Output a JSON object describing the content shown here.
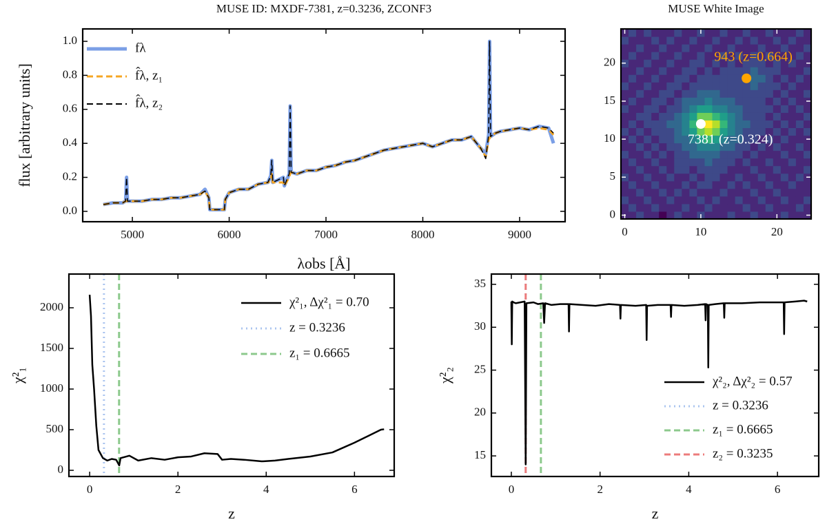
{
  "chart_data": [
    {
      "type": "line",
      "title": "MUSE ID: MXDF-7381, z=0.3236, ZCONF3",
      "x_label": "λobs [Å]",
      "y_label": "flux [arbitrary units]",
      "xlim": [
        4487,
        9470
      ],
      "ylim": [
        -0.061,
        1.073
      ],
      "xticks": [
        5000,
        6000,
        7000,
        8000,
        9000
      ],
      "yticks": [
        {
          "value": 0,
          "label": "0.0"
        },
        {
          "value": 0.2,
          "label": "0.2"
        },
        {
          "value": 0.4,
          "label": "0.4"
        },
        {
          "value": 0.6,
          "label": "0.6"
        },
        {
          "value": 0.8,
          "label": "0.8"
        },
        {
          "value": 1,
          "label": "1.0"
        }
      ],
      "legend": "upper left",
      "x": [
        4700,
        4800,
        4900,
        4930,
        4940,
        4950,
        5000,
        5100,
        5200,
        5300,
        5400,
        5500,
        5600,
        5700,
        5750,
        5790,
        5800,
        5950,
        5960,
        6000,
        6100,
        6200,
        6300,
        6400,
        6430,
        6440,
        6450,
        6560,
        6570,
        6620,
        6630,
        6640,
        6700,
        6800,
        6900,
        7000,
        7100,
        7200,
        7300,
        7400,
        7500,
        7600,
        7700,
        7800,
        7900,
        8000,
        8100,
        8200,
        8300,
        8400,
        8500,
        8600,
        8650,
        8680,
        8690,
        8700,
        8750,
        8800,
        8900,
        9000,
        9100,
        9200,
        9300,
        9350
      ],
      "series": [
        {
          "name": "fλ",
          "color": "#7b9fe6",
          "dash": "solid",
          "width": 5,
          "values": [
            0.04,
            0.05,
            0.05,
            0.06,
            0.2,
            0.06,
            0.06,
            0.06,
            0.07,
            0.07,
            0.08,
            0.08,
            0.09,
            0.1,
            0.13,
            0.08,
            0.01,
            0.01,
            0.07,
            0.11,
            0.13,
            0.13,
            0.16,
            0.17,
            0.21,
            0.3,
            0.17,
            0.2,
            0.15,
            0.22,
            0.62,
            0.23,
            0.22,
            0.24,
            0.24,
            0.26,
            0.27,
            0.29,
            0.3,
            0.32,
            0.34,
            0.36,
            0.37,
            0.38,
            0.39,
            0.4,
            0.38,
            0.4,
            0.42,
            0.42,
            0.44,
            0.37,
            0.34,
            0.45,
            1.0,
            0.44,
            0.46,
            0.47,
            0.48,
            0.49,
            0.48,
            0.5,
            0.49,
            0.4
          ]
        },
        {
          "name": "f̂λ, z₁",
          "color": "#f5a623",
          "dash": "dash",
          "width": 3,
          "values": [
            0.04,
            0.05,
            0.05,
            0.06,
            0.06,
            0.06,
            0.06,
            0.06,
            0.07,
            0.07,
            0.08,
            0.08,
            0.09,
            0.1,
            0.12,
            0.08,
            0.01,
            0.01,
            0.07,
            0.11,
            0.13,
            0.13,
            0.16,
            0.17,
            0.18,
            0.22,
            0.17,
            0.17,
            0.15,
            0.2,
            0.22,
            0.23,
            0.22,
            0.24,
            0.24,
            0.26,
            0.27,
            0.29,
            0.3,
            0.32,
            0.34,
            0.36,
            0.37,
            0.38,
            0.39,
            0.4,
            0.38,
            0.4,
            0.42,
            0.42,
            0.44,
            0.37,
            0.32,
            0.42,
            0.43,
            0.44,
            0.46,
            0.47,
            0.48,
            0.49,
            0.48,
            0.49,
            0.48,
            0.45
          ]
        },
        {
          "name": "f̂λ, z₂",
          "color": "#000000",
          "dash": "dash",
          "width": 1.5,
          "values": [
            0.04,
            0.05,
            0.05,
            0.06,
            0.2,
            0.06,
            0.06,
            0.06,
            0.07,
            0.07,
            0.08,
            0.08,
            0.09,
            0.1,
            0.12,
            0.08,
            0.01,
            0.01,
            0.07,
            0.11,
            0.13,
            0.13,
            0.16,
            0.17,
            0.21,
            0.3,
            0.17,
            0.2,
            0.15,
            0.22,
            0.62,
            0.23,
            0.22,
            0.24,
            0.24,
            0.26,
            0.27,
            0.29,
            0.3,
            0.32,
            0.34,
            0.36,
            0.37,
            0.38,
            0.39,
            0.4,
            0.38,
            0.4,
            0.42,
            0.42,
            0.44,
            0.37,
            0.31,
            0.45,
            1.0,
            0.44,
            0.46,
            0.47,
            0.48,
            0.49,
            0.48,
            0.5,
            0.49,
            0.46
          ]
        }
      ]
    },
    {
      "type": "heatmap",
      "title": "MUSE White Image",
      "colormap": "viridis",
      "xlim": [
        -0.5,
        24.5
      ],
      "ylim": [
        -0.5,
        24.5
      ],
      "xticks": [
        0,
        10,
        20
      ],
      "yticks": [
        0,
        5,
        10,
        15,
        20
      ],
      "image": [
        [
          2,
          2,
          3,
          2,
          2,
          1,
          2,
          3,
          2,
          2,
          3,
          2,
          2,
          2,
          3,
          2,
          2,
          3,
          2,
          2,
          2,
          3,
          2,
          2,
          2
        ],
        [
          2,
          3,
          2,
          2,
          3,
          2,
          2,
          2,
          3,
          2,
          2,
          3,
          2,
          2,
          2,
          2,
          3,
          2,
          2,
          3,
          2,
          2,
          2,
          3,
          2
        ],
        [
          3,
          2,
          2,
          3,
          2,
          2,
          3,
          2,
          2,
          2,
          3,
          2,
          3,
          2,
          2,
          3,
          2,
          2,
          3,
          2,
          2,
          3,
          2,
          2,
          3
        ],
        [
          2,
          2,
          3,
          2,
          2,
          3,
          2,
          3,
          2,
          3,
          2,
          2,
          2,
          3,
          2,
          2,
          2,
          3,
          2,
          2,
          3,
          2,
          2,
          2,
          2
        ],
        [
          2,
          3,
          2,
          2,
          3,
          2,
          2,
          2,
          3,
          2,
          3,
          3,
          2,
          2,
          3,
          2,
          3,
          2,
          2,
          3,
          2,
          2,
          3,
          2,
          2
        ],
        [
          3,
          2,
          2,
          3,
          2,
          2,
          3,
          2,
          2,
          3,
          2,
          3,
          3,
          2,
          2,
          3,
          2,
          2,
          3,
          2,
          2,
          3,
          2,
          3,
          2
        ],
        [
          2,
          2,
          3,
          2,
          2,
          3,
          2,
          3,
          3,
          2,
          3,
          3,
          3,
          3,
          2,
          2,
          2,
          3,
          2,
          2,
          3,
          2,
          2,
          2,
          3
        ],
        [
          2,
          3,
          2,
          2,
          3,
          2,
          2,
          3,
          3,
          3,
          3,
          4,
          3,
          3,
          3,
          2,
          3,
          2,
          2,
          3,
          2,
          2,
          3,
          2,
          2
        ],
        [
          3,
          2,
          2,
          3,
          2,
          3,
          2,
          3,
          3,
          4,
          4,
          4,
          4,
          3,
          3,
          3,
          2,
          3,
          2,
          2,
          2,
          3,
          2,
          2,
          3
        ],
        [
          2,
          2,
          3,
          2,
          3,
          2,
          3,
          3,
          4,
          4,
          5,
          5,
          5,
          4,
          4,
          3,
          3,
          2,
          3,
          2,
          3,
          2,
          2,
          3,
          2
        ],
        [
          2,
          3,
          2,
          3,
          2,
          3,
          3,
          4,
          4,
          5,
          6,
          7,
          6,
          5,
          4,
          4,
          3,
          3,
          2,
          3,
          2,
          3,
          2,
          2,
          2
        ],
        [
          3,
          2,
          3,
          2,
          3,
          3,
          3,
          4,
          5,
          6,
          8,
          9,
          8,
          6,
          5,
          4,
          3,
          3,
          3,
          2,
          3,
          2,
          3,
          2,
          3
        ],
        [
          2,
          3,
          2,
          3,
          3,
          3,
          4,
          4,
          5,
          7,
          9,
          10,
          9,
          7,
          5,
          4,
          4,
          3,
          3,
          3,
          2,
          3,
          2,
          3,
          2
        ],
        [
          2,
          2,
          3,
          3,
          2,
          3,
          3,
          4,
          5,
          6,
          8,
          8,
          7,
          6,
          5,
          4,
          3,
          3,
          3,
          2,
          3,
          2,
          2,
          2,
          3
        ],
        [
          3,
          2,
          2,
          3,
          3,
          2,
          3,
          3,
          4,
          5,
          6,
          6,
          5,
          5,
          4,
          4,
          3,
          3,
          3,
          3,
          2,
          3,
          2,
          3,
          2
        ],
        [
          2,
          3,
          2,
          2,
          3,
          3,
          2,
          3,
          4,
          4,
          4,
          5,
          4,
          4,
          4,
          3,
          3,
          3,
          3,
          2,
          3,
          2,
          3,
          2,
          2
        ],
        [
          2,
          2,
          3,
          2,
          2,
          3,
          3,
          2,
          3,
          3,
          4,
          4,
          4,
          3,
          3,
          3,
          3,
          3,
          3,
          3,
          2,
          3,
          2,
          2,
          3
        ],
        [
          3,
          2,
          2,
          3,
          2,
          2,
          3,
          3,
          2,
          3,
          3,
          3,
          3,
          3,
          3,
          3,
          3,
          4,
          3,
          3,
          3,
          2,
          3,
          2,
          2
        ],
        [
          2,
          3,
          2,
          2,
          3,
          2,
          2,
          3,
          3,
          2,
          3,
          3,
          3,
          3,
          3,
          3,
          4,
          4,
          4,
          3,
          2,
          3,
          2,
          3,
          2
        ],
        [
          2,
          2,
          3,
          2,
          2,
          3,
          2,
          2,
          3,
          3,
          2,
          3,
          2,
          3,
          3,
          3,
          3,
          4,
          3,
          3,
          3,
          2,
          2,
          2,
          3
        ],
        [
          3,
          2,
          2,
          3,
          2,
          2,
          3,
          2,
          2,
          3,
          3,
          2,
          3,
          2,
          3,
          2,
          3,
          3,
          3,
          2,
          3,
          2,
          3,
          2,
          2
        ],
        [
          2,
          3,
          2,
          2,
          3,
          2,
          2,
          3,
          2,
          2,
          3,
          2,
          2,
          3,
          2,
          3,
          2,
          3,
          2,
          3,
          2,
          2,
          2,
          3,
          2
        ],
        [
          2,
          2,
          3,
          2,
          2,
          3,
          2,
          2,
          3,
          2,
          2,
          3,
          2,
          2,
          3,
          2,
          2,
          2,
          3,
          2,
          2,
          3,
          2,
          2,
          3
        ],
        [
          3,
          2,
          2,
          2,
          3,
          2,
          3,
          2,
          2,
          3,
          2,
          2,
          3,
          2,
          2,
          3,
          2,
          3,
          2,
          2,
          3,
          2,
          3,
          2,
          2
        ],
        [
          2,
          3,
          2,
          3,
          2,
          2,
          2,
          3,
          2,
          2,
          3,
          2,
          2,
          3,
          2,
          2,
          3,
          2,
          2,
          3,
          2,
          2,
          2,
          3,
          2
        ]
      ],
      "points": [
        {
          "label": "7381 (z=0.324)",
          "x": 10,
          "y": 12,
          "color": "#ffffff"
        },
        {
          "label": "943 (z=0.664)",
          "x": 16,
          "y": 18,
          "color": "#ffa500"
        }
      ]
    },
    {
      "type": "line",
      "x_label": "z",
      "y_label": "χ²₁",
      "xlim": [
        -0.47,
        6.9
      ],
      "ylim": [
        -76,
        2415
      ],
      "xticks": [
        0,
        2,
        4,
        6
      ],
      "yticks": [
        0,
        500,
        1000,
        1500,
        2000
      ],
      "legend": "upper right",
      "x": [
        0,
        0.03,
        0.06,
        0.1,
        0.15,
        0.2,
        0.3,
        0.4,
        0.5,
        0.6,
        0.67,
        0.7,
        0.9,
        1.1,
        1.4,
        1.7,
        2,
        2.3,
        2.6,
        2.9,
        3.0,
        3.2,
        3.5,
        3.9,
        4.2,
        4.5,
        5,
        5.5,
        6,
        6.3,
        6.6,
        6.67
      ],
      "series": [
        {
          "name": "χ²₁, Δχ²₁ = 0.70",
          "color": "#000000",
          "dash": "solid",
          "width": 2.5,
          "values": [
            2160,
            1900,
            1300,
            1000,
            550,
            250,
            150,
            120,
            140,
            130,
            60,
            150,
            180,
            120,
            150,
            130,
            160,
            170,
            210,
            200,
            130,
            140,
            130,
            110,
            120,
            140,
            170,
            220,
            340,
            420,
            500,
            505
          ]
        }
      ],
      "vlines": [
        {
          "name": "z = 0.3236",
          "value": 0.3236,
          "color": "#aac4ef",
          "dash": "dot"
        },
        {
          "name": "z₁ = 0.6665",
          "value": 0.6665,
          "color": "#8cc98c",
          "dash": "dash"
        }
      ]
    },
    {
      "type": "line",
      "x_label": "z",
      "y_label": "χ²₂",
      "xlim": [
        -0.45,
        6.93
      ],
      "ylim": [
        12.6,
        36.2
      ],
      "xticks": [
        0,
        2,
        4,
        6
      ],
      "yticks": [
        15,
        20,
        25,
        30,
        35
      ],
      "legend": "lower right",
      "x": [
        0,
        0.01,
        0.02,
        0.05,
        0.1,
        0.2,
        0.3,
        0.3236,
        0.34,
        0.5,
        0.6,
        0.72,
        0.74,
        0.76,
        0.9,
        1.1,
        1.29,
        1.3,
        1.31,
        1.6,
        1.9,
        2.2,
        2.45,
        2.46,
        2.47,
        2.8,
        3.04,
        3.05,
        3.06,
        3.3,
        3.59,
        3.6,
        3.61,
        3.9,
        4.2,
        4.37,
        4.38,
        4.39,
        4.43,
        4.44,
        4.45,
        4.6,
        4.79,
        4.8,
        4.81,
        5.2,
        5.6,
        6.0,
        6.14,
        6.15,
        6.16,
        6.4,
        6.6,
        6.67
      ],
      "series": [
        {
          "name": "χ²₂, Δχ²₂ = 0.57",
          "color": "#000000",
          "dash": "solid",
          "width": 2.5,
          "values": [
            33,
            28,
            33,
            32.9,
            32.8,
            32.9,
            33,
            14,
            32.8,
            32.9,
            32.7,
            32.8,
            30.5,
            32.8,
            32.6,
            32.7,
            32.7,
            29.5,
            32.7,
            32.6,
            32.5,
            32.7,
            32.6,
            31,
            32.6,
            32.5,
            32.6,
            28.5,
            32.5,
            32.6,
            32.6,
            31.2,
            32.6,
            32.5,
            32.6,
            32.7,
            30.8,
            32.7,
            32.6,
            25.3,
            32.6,
            32.7,
            32.8,
            31.1,
            32.8,
            32.8,
            32.9,
            32.9,
            32.9,
            29.2,
            32.9,
            33,
            33.1,
            33
          ]
        }
      ],
      "vlines": [
        {
          "name": "z = 0.3236",
          "value": 0.3236,
          "color": "#aac4ef",
          "dash": "dot"
        },
        {
          "name": "z₁ = 0.6665",
          "value": 0.6665,
          "color": "#8cc98c",
          "dash": "dash"
        },
        {
          "name": "z₂ = 0.3235",
          "value": 0.3235,
          "color": "#ec7b7b",
          "dash": "dash"
        }
      ]
    }
  ]
}
